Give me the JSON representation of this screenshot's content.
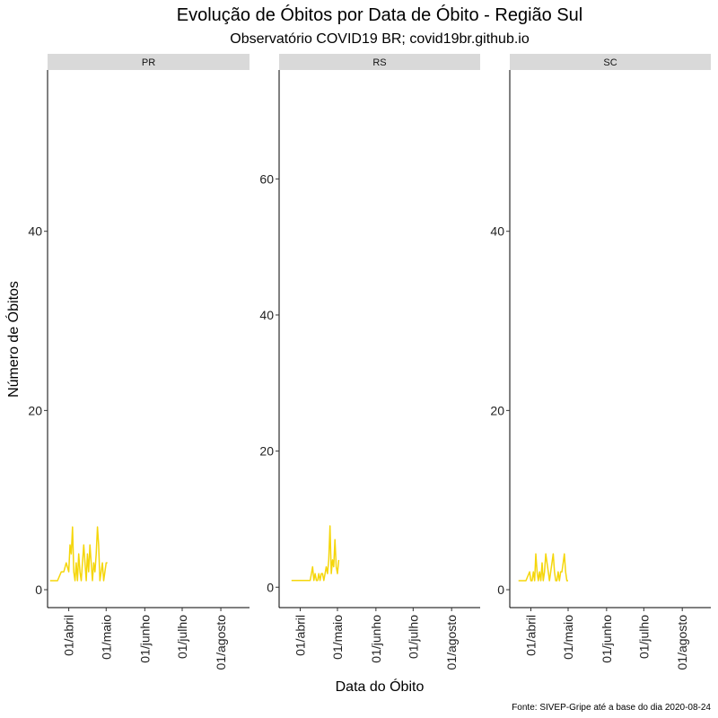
{
  "chart_data": {
    "type": "line",
    "title": "Evolução de Óbitos por Data de Óbito - Região Sul",
    "subtitle": "Observatório COVID19 BR; covid19br.github.io",
    "xlabel": "Data do Óbito",
    "ylabel": "Número de Óbitos",
    "caption": "Fonte: SIVEP-Gripe até a base do dia 2020-08-24",
    "line_color": "#f5d60a",
    "x_ticks": [
      {
        "date": "2020-04-01",
        "label": "01/abril"
      },
      {
        "date": "2020-05-01",
        "label": "01/maio"
      },
      {
        "date": "2020-06-01",
        "label": "01/junho"
      },
      {
        "date": "2020-07-01",
        "label": "01/julho"
      },
      {
        "date": "2020-08-01",
        "label": "01/agosto"
      }
    ],
    "xlim": [
      "2020-03-15",
      "2020-08-24"
    ],
    "panels": [
      {
        "name": "PR",
        "ylim": [
          -2,
          58
        ],
        "y_ticks": [
          0,
          20,
          40
        ],
        "x": [
          "2020-03-17",
          "2020-03-20",
          "2020-03-23",
          "2020-03-26",
          "2020-03-28",
          "2020-03-30",
          "2020-04-01",
          "2020-04-02",
          "2020-04-03",
          "2020-04-04",
          "2020-04-05",
          "2020-04-06",
          "2020-04-07",
          "2020-04-08",
          "2020-04-09",
          "2020-04-10",
          "2020-04-11",
          "2020-04-12",
          "2020-04-13",
          "2020-04-14",
          "2020-04-15",
          "2020-04-16",
          "2020-04-17",
          "2020-04-18",
          "2020-04-19",
          "2020-04-20",
          "2020-04-21",
          "2020-04-22",
          "2020-04-23",
          "2020-04-24",
          "2020-04-25",
          "2020-04-26",
          "2020-04-27",
          "2020-04-28",
          "2020-04-29",
          "2020-04-30",
          "2020-05-01",
          "2020-05-02"
        ],
        "y": [
          1,
          1,
          1,
          2,
          2,
          3,
          2,
          5,
          4,
          7,
          2,
          1,
          3,
          1,
          4,
          2,
          1,
          3,
          5,
          3,
          1,
          4,
          2,
          5,
          3,
          1,
          3,
          2,
          4,
          7,
          5,
          1,
          2,
          3,
          1,
          2,
          3,
          3
        ]
      },
      {
        "name": "RS",
        "ylim": [
          -3,
          76
        ],
        "y_ticks": [
          0,
          20,
          40,
          60
        ],
        "x": [
          "2020-03-25",
          "2020-03-28",
          "2020-04-01",
          "2020-04-04",
          "2020-04-07",
          "2020-04-09",
          "2020-04-10",
          "2020-04-11",
          "2020-04-12",
          "2020-04-13",
          "2020-04-14",
          "2020-04-15",
          "2020-04-16",
          "2020-04-17",
          "2020-04-18",
          "2020-04-19",
          "2020-04-20",
          "2020-04-21",
          "2020-04-22",
          "2020-04-23",
          "2020-04-24",
          "2020-04-25",
          "2020-04-26",
          "2020-04-27",
          "2020-04-28",
          "2020-04-29",
          "2020-04-30",
          "2020-05-01",
          "2020-05-02"
        ],
        "y": [
          1,
          1,
          1,
          1,
          1,
          1,
          2,
          3,
          1,
          2,
          1,
          1,
          2,
          1,
          2,
          2,
          1,
          2,
          3,
          2,
          4,
          9,
          2,
          4,
          3,
          7,
          3,
          2,
          4
        ]
      },
      {
        "name": "SC",
        "ylim": [
          -2,
          58
        ],
        "y_ticks": [
          0,
          20,
          40
        ],
        "x": [
          "2020-03-22",
          "2020-03-25",
          "2020-03-28",
          "2020-03-31",
          "2020-04-01",
          "2020-04-02",
          "2020-04-03",
          "2020-04-04",
          "2020-04-05",
          "2020-04-06",
          "2020-04-07",
          "2020-04-08",
          "2020-04-09",
          "2020-04-10",
          "2020-04-11",
          "2020-04-12",
          "2020-04-13",
          "2020-04-14",
          "2020-04-15",
          "2020-04-16",
          "2020-04-17",
          "2020-04-18",
          "2020-04-19",
          "2020-04-20",
          "2020-04-21",
          "2020-04-22",
          "2020-04-23",
          "2020-04-24",
          "2020-04-25",
          "2020-04-26",
          "2020-04-27",
          "2020-04-28",
          "2020-04-29",
          "2020-04-30",
          "2020-05-01"
        ],
        "y": [
          1,
          1,
          1,
          2,
          1,
          1,
          2,
          1,
          4,
          2,
          1,
          2,
          1,
          3,
          1,
          2,
          4,
          3,
          2,
          1,
          2,
          3,
          4,
          2,
          1,
          1,
          2,
          1,
          2,
          2,
          3,
          4,
          2,
          1,
          1
        ]
      }
    ]
  }
}
